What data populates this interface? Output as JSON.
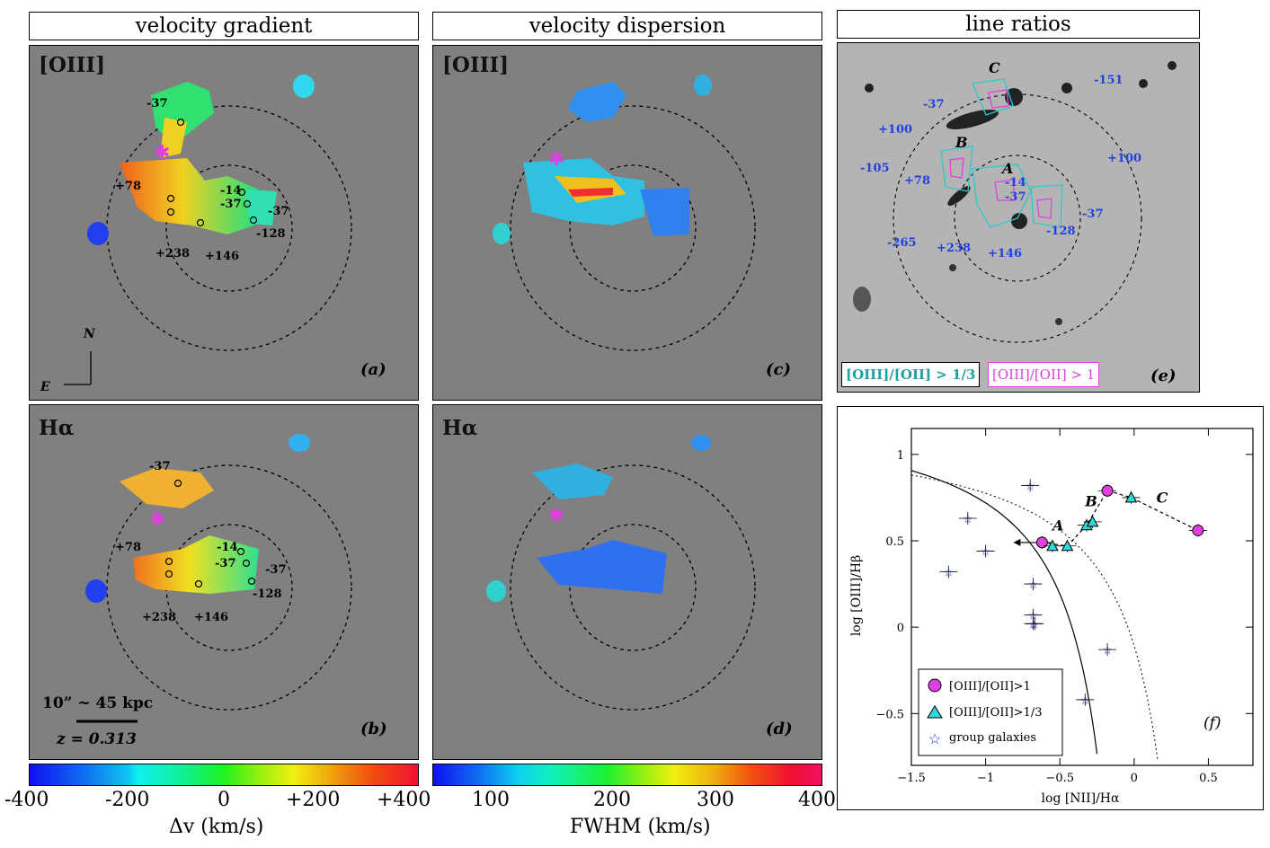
{
  "headers": {
    "col1": "velocity gradient",
    "col2": "velocity dispersion",
    "col3": "line ratios"
  },
  "panels": {
    "a": {
      "line": "[OIII]",
      "tag": "(a)"
    },
    "b": {
      "line": "Hα",
      "tag": "(b)"
    },
    "c": {
      "line": "[OIII]",
      "tag": "(c)"
    },
    "d": {
      "line": "Hα",
      "tag": "(d)"
    },
    "e": {
      "tag": "(e)",
      "legend_cyan": "[OIII]/[OII] > 1/3",
      "legend_magenta": "[OIII]/[OII] > 1"
    },
    "f": {
      "tag": "(f)"
    }
  },
  "compass": {
    "north": "N",
    "east": "E"
  },
  "scale": {
    "bar_label": "10” ~ 45 kpc",
    "redshift": "z = 0.313"
  },
  "velocity_labels_a": [
    "-37",
    "+78",
    "+238",
    "+146",
    "-14",
    "-37",
    "-37",
    "-128"
  ],
  "velocity_labels_e": [
    "-37",
    "+100",
    "-105",
    "+78",
    "+238",
    "+146",
    "-14",
    "-37",
    "-37",
    "-128",
    "-265",
    "+100",
    "-151"
  ],
  "region_letters": [
    "A",
    "B",
    "C"
  ],
  "colorbar_velocity": {
    "ticks": [
      "-400",
      "-200",
      "0",
      "+200",
      "+400"
    ],
    "label": "Δv (km/s)"
  },
  "colorbar_fwhm": {
    "ticks": [
      "100",
      "200",
      "300",
      "400"
    ],
    "label": "FWHM (km/s)"
  },
  "chart_data": {
    "type": "scatter",
    "title": "",
    "xlabel": "log [NII]/Hα",
    "ylabel": "log [OIII]/Hβ",
    "xlim": [
      -1.5,
      0.8
    ],
    "ylim": [
      -0.8,
      1.15
    ],
    "xticks": [
      "−1.5",
      "−1",
      "−0.5",
      "0",
      "0.5"
    ],
    "yticks": [
      "−0.5",
      "0",
      "0.5",
      "1"
    ],
    "legend": [
      "[OIII]/[OII]>1",
      "[OIII]/[OII]>1/3",
      "group galaxies"
    ],
    "series": [
      {
        "name": "[OIII]/[OII]>1",
        "marker": "circle",
        "color": "#e040e0",
        "points": [
          [
            -0.62,
            0.49
          ],
          [
            -0.18,
            0.79
          ],
          [
            0.43,
            0.56
          ]
        ]
      },
      {
        "name": "[OIII]/[OII]>1/3",
        "marker": "triangle",
        "color": "#30d8d8",
        "points": [
          [
            -0.55,
            0.47
          ],
          [
            -0.45,
            0.47
          ],
          [
            -0.32,
            0.59
          ],
          [
            -0.28,
            0.61
          ],
          [
            -0.02,
            0.75
          ]
        ]
      },
      {
        "name": "group galaxies",
        "marker": "star",
        "color": "#2030d0",
        "points": [
          [
            -1.12,
            0.63
          ],
          [
            -1.0,
            0.44
          ],
          [
            -1.25,
            0.32
          ],
          [
            -0.68,
            0.25
          ],
          [
            -0.68,
            0.07
          ],
          [
            -0.68,
            0.02
          ],
          [
            -0.7,
            0.82
          ],
          [
            -0.67,
            0.02
          ],
          [
            -0.18,
            -0.13
          ],
          [
            -0.33,
            -0.42
          ]
        ]
      }
    ],
    "upper_limit_A": [
      -0.62,
      0.49
    ],
    "annotations": [
      "A",
      "B",
      "C"
    ]
  },
  "colors": {
    "panel_bg": "#808080",
    "cyan_contour": "#30c8c8",
    "magenta_contour": "#e040e0",
    "label_blue": "#2040e0"
  }
}
